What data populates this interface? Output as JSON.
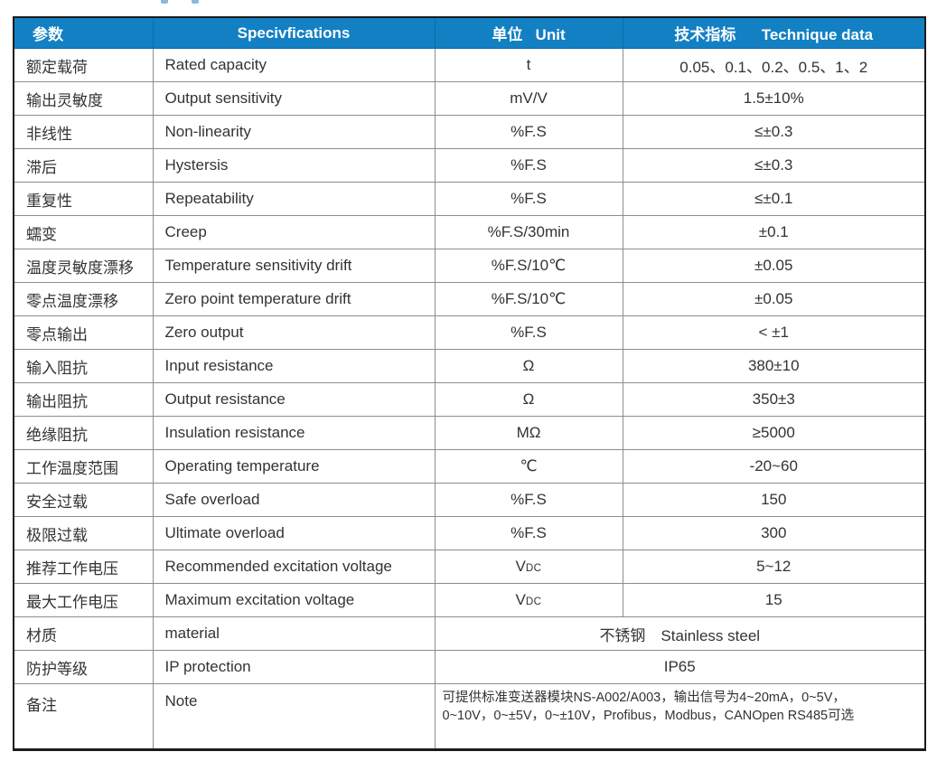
{
  "colors": {
    "header_bg": "#1380c4",
    "header_text": "#ffffff",
    "grid_line": "#8d8d8d",
    "outer_border": "#1b1b1b",
    "body_text": "#333333"
  },
  "table": {
    "headers": {
      "param": "参数",
      "spec": "Specivfications",
      "unit": "单位   Unit",
      "tech": "技术指标      Technique data"
    },
    "rows": [
      {
        "param": "额定载荷",
        "spec": "Rated capacity",
        "unit": "t",
        "value": "0.05、0.1、0.2、0.5、1、2"
      },
      {
        "param": "输出灵敏度",
        "spec": "Output sensitivity",
        "unit": "mV/V",
        "value": "1.5±10%"
      },
      {
        "param": "非线性",
        "spec": "Non-linearity",
        "unit": "%F.S",
        "value": "≤±0.3"
      },
      {
        "param": "滞后",
        "spec": "Hystersis",
        "unit": "%F.S",
        "value": "≤±0.3"
      },
      {
        "param": "重复性",
        "spec": "Repeatability",
        "unit": "%F.S",
        "value": "≤±0.1"
      },
      {
        "param": "蠕变",
        "spec": "Creep",
        "unit": "%F.S/30min",
        "value": "±0.1"
      },
      {
        "param": "温度灵敏度漂移",
        "spec": "Temperature sensitivity drift",
        "unit": "%F.S/10℃",
        "value": "±0.05"
      },
      {
        "param": "零点温度漂移",
        "spec": "Zero point temperature drift",
        "unit": "%F.S/10℃",
        "value": "±0.05"
      },
      {
        "param": "零点输出",
        "spec": "Zero output",
        "unit": "%F.S",
        "value": "< ±1"
      },
      {
        "param": "输入阻抗",
        "spec": "Input resistance",
        "unit": "Ω",
        "value": "380±10"
      },
      {
        "param": "输出阻抗",
        "spec": "Output resistance",
        "unit": "Ω",
        "value": "350±3"
      },
      {
        "param": "绝缘阻抗",
        "spec": "Insulation resistance",
        "unit": "MΩ",
        "value": "≥5000"
      },
      {
        "param": "工作温度范围",
        "spec": "Operating temperature",
        "unit": "℃",
        "value": "-20~60"
      },
      {
        "param": "安全过载",
        "spec": "Safe overload",
        "unit": "%F.S",
        "value": "150"
      },
      {
        "param": "极限过载",
        "spec": "Ultimate overload",
        "unit": "%F.S",
        "value": "300"
      },
      {
        "param": "推荐工作电压",
        "spec": "Recommended excitation voltage",
        "unit": "V",
        "unit_sub": "DC",
        "value": "5~12"
      },
      {
        "param": "最大工作电压",
        "spec": "Maximum excitation voltage",
        "unit": "V",
        "unit_sub": "DC",
        "value": "15"
      },
      {
        "param": "材质",
        "spec": "material",
        "merged": "不锈钢　Stainless steel"
      },
      {
        "param": "防护等级",
        "spec": "IP protection",
        "merged": "IP65"
      },
      {
        "param": "备注",
        "spec": "Note",
        "merged": "可提供标准变送器模块NS-A002/A003，输出信号为4~20mA，0~5V，\n0~10V，0~±5V，0~±10V，Profibus，Modbus，CANOpen RS485可选",
        "note": true
      }
    ]
  }
}
